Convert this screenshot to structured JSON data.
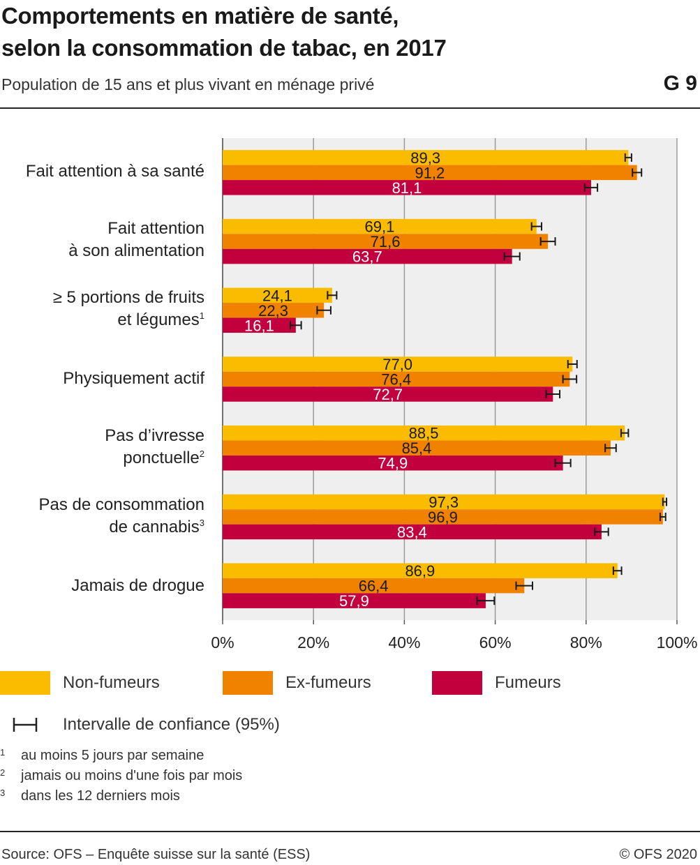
{
  "header": {
    "title_line1": "Comportements en matière de santé,",
    "title_line2": "selon la consommation de tabac, en 2017",
    "subtitle": "Population de 15 ans et plus vivant en ménage privé",
    "figure_id": "G 9"
  },
  "chart_data": {
    "type": "bar",
    "orientation": "horizontal",
    "categories": [
      "Fait attention à sa santé",
      "Fait attention à son alimentation",
      "≥ 5 portions de fruits et légumes",
      "Physiquement actif",
      "Pas d’ivresse ponctuelle",
      "Pas de consommation de cannabis",
      "Jamais de drogue"
    ],
    "series": [
      {
        "name": "Non-fumeurs",
        "color": "#fbbc00",
        "values": [
          89.3,
          69.1,
          24.1,
          77.0,
          88.5,
          97.3,
          86.9
        ],
        "labels": [
          "89,3",
          "69,1",
          "24,1",
          "77,0",
          "88,5",
          "97,3",
          "86,9"
        ],
        "ci_low": [
          88.6,
          68.0,
          23.1,
          76.0,
          87.7,
          96.9,
          86.0
        ],
        "ci_high": [
          90.0,
          70.2,
          25.1,
          78.0,
          89.3,
          97.7,
          87.8
        ]
      },
      {
        "name": "Ex-fumeurs",
        "color": "#f08200",
        "values": [
          91.2,
          71.6,
          22.3,
          76.4,
          85.4,
          96.9,
          66.4
        ],
        "labels": [
          "91,2",
          "71,6",
          "22,3",
          "76,4",
          "85,4",
          "96,9",
          "66,4"
        ],
        "ci_low": [
          90.2,
          70.0,
          20.8,
          74.9,
          84.2,
          96.3,
          64.6
        ],
        "ci_high": [
          92.2,
          73.2,
          23.8,
          77.9,
          86.6,
          97.5,
          68.2
        ]
      },
      {
        "name": "Fumeurs",
        "color": "#c2003d",
        "values": [
          81.1,
          63.7,
          16.1,
          72.7,
          74.9,
          83.4,
          57.9
        ],
        "labels": [
          "81,1",
          "63,7",
          "16,1",
          "72,7",
          "74,9",
          "83,4",
          "57,9"
        ],
        "ci_low": [
          79.7,
          62.0,
          14.9,
          71.2,
          73.2,
          81.9,
          56.0
        ],
        "ci_high": [
          82.5,
          65.4,
          17.3,
          74.2,
          76.6,
          84.9,
          59.8
        ]
      }
    ],
    "xlim": [
      0,
      100
    ],
    "x_ticks": [
      "0%",
      "20%",
      "40%",
      "60%",
      "80%",
      "100%"
    ],
    "grid": true,
    "plot_background": "#efefef",
    "legend_position": "bottom",
    "ci_legend_label": "Intervalle de confiance (95%)"
  },
  "labels": {
    "cat0": "Fait attention à sa santé",
    "cat1_l1": "Fait attention",
    "cat1_l2": "à son alimentation",
    "cat2_l1": "≥ 5 portions de fruits",
    "cat2_l2": "et légumes",
    "cat2_sup": "1",
    "cat3": "Physiquement actif",
    "cat4_l1": "Pas d’ivresse",
    "cat4_l2": "ponctuelle",
    "cat4_sup": "2",
    "cat5_l1": "Pas de consommation",
    "cat5_l2": "de cannabis",
    "cat5_sup": "3",
    "cat6": "Jamais de drogue"
  },
  "legend": {
    "non_fumeurs": "Non-fumeurs",
    "ex_fumeurs": "Ex-fumeurs",
    "fumeurs": "Fumeurs",
    "ci": "Intervalle de confiance (95%)"
  },
  "footnotes": [
    {
      "mark": "1",
      "text": "au moins 5 jours par semaine"
    },
    {
      "mark": "2",
      "text": "jamais ou moins d'une fois par mois"
    },
    {
      "mark": "3",
      "text": "dans les 12 derniers mois"
    }
  ],
  "footer": {
    "source": "Source: OFS – Enquête suisse sur la santé (ESS)",
    "copyright": "© OFS 2020"
  }
}
